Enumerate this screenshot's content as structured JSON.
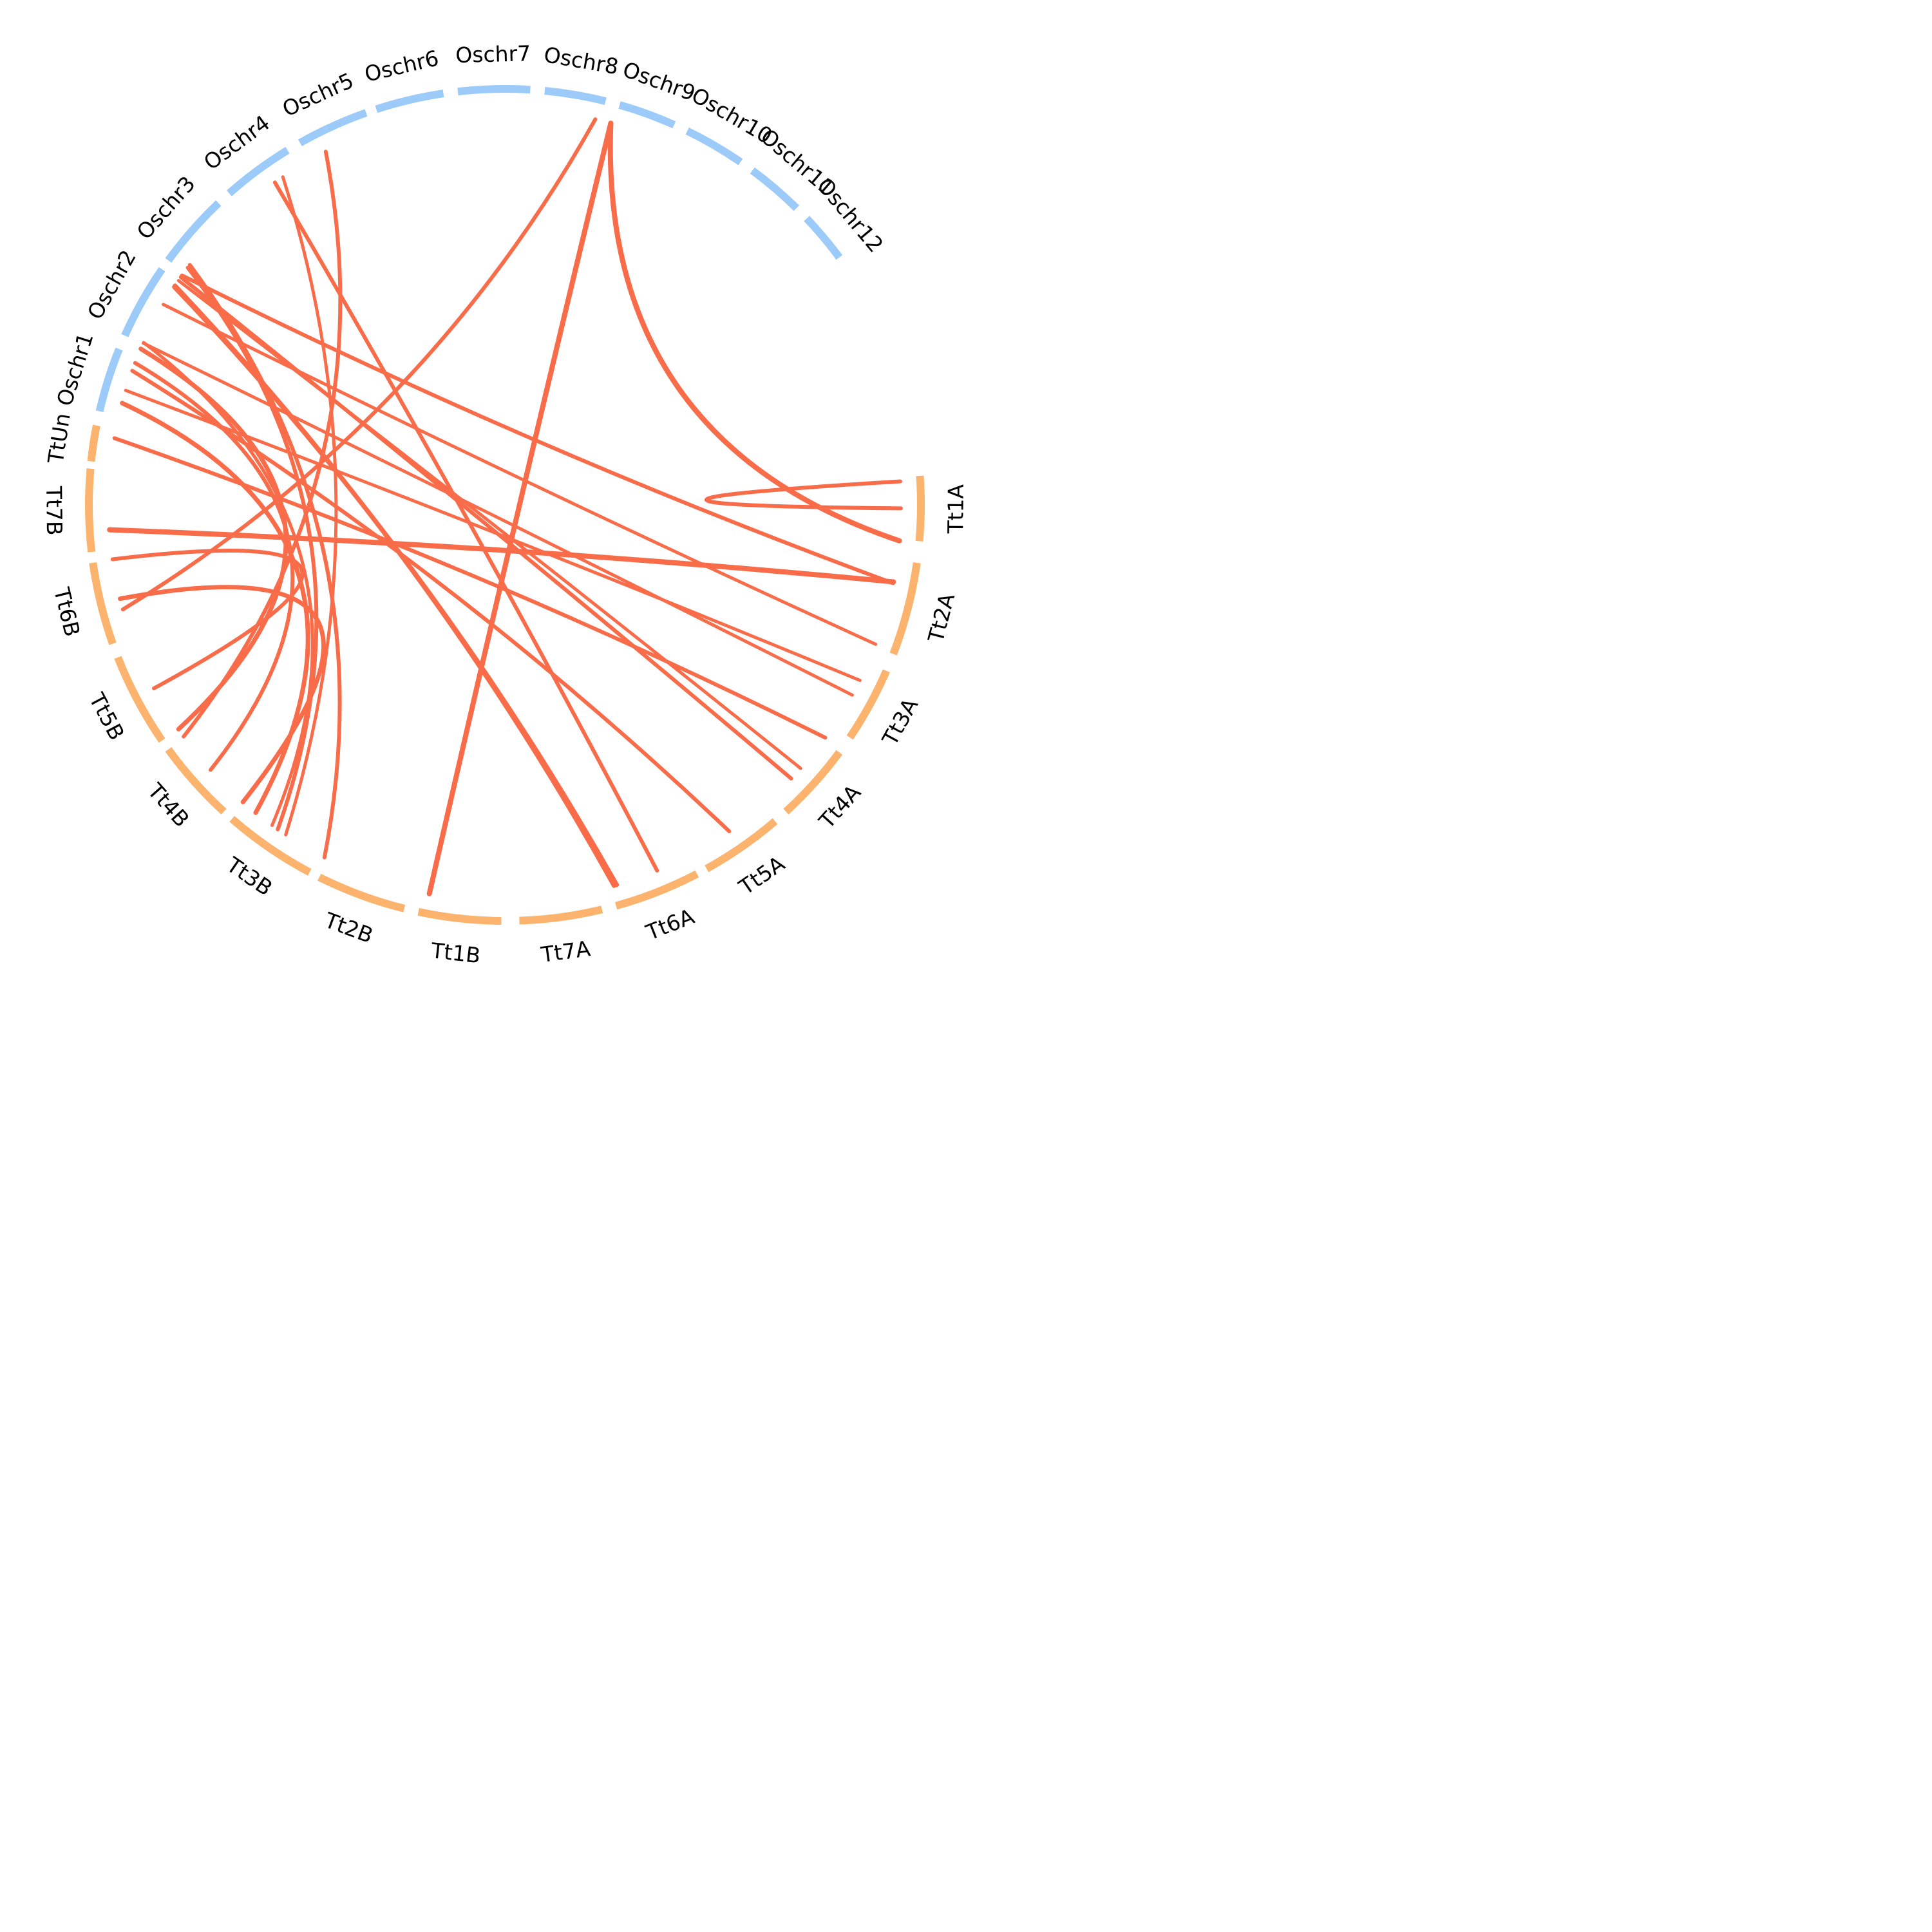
{
  "diagram": {
    "type": "circos",
    "colors": {
      "rice_segment": "#9ccbf9",
      "wheat_segment": "#fbb36e",
      "link": "#f96c4a",
      "label": "#000000"
    },
    "chromosomes": [
      {
        "id": "Tt1A",
        "label": "Tt1A",
        "group": "wheat"
      },
      {
        "id": "Tt2A",
        "label": "Tt2A",
        "group": "wheat"
      },
      {
        "id": "Tt3A",
        "label": "Tt3A",
        "group": "wheat"
      },
      {
        "id": "Tt4A",
        "label": "Tt4A",
        "group": "wheat"
      },
      {
        "id": "Tt5A",
        "label": "Tt5A",
        "group": "wheat"
      },
      {
        "id": "Tt6A",
        "label": "Tt6A",
        "group": "wheat"
      },
      {
        "id": "Tt7A",
        "label": "Tt7A",
        "group": "wheat"
      },
      {
        "id": "Tt1B",
        "label": "Tt1B",
        "group": "wheat"
      },
      {
        "id": "Tt2B",
        "label": "Tt2B",
        "group": "wheat"
      },
      {
        "id": "Tt3B",
        "label": "Tt3B",
        "group": "wheat"
      },
      {
        "id": "Tt4B",
        "label": "Tt4B",
        "group": "wheat"
      },
      {
        "id": "Tt5B",
        "label": "Tt5B",
        "group": "wheat"
      },
      {
        "id": "Tt6B",
        "label": "Tt6B",
        "group": "wheat"
      },
      {
        "id": "Tt7B",
        "label": "Tt7B",
        "group": "wheat"
      },
      {
        "id": "TtUn",
        "label": "TtUn",
        "group": "wheat"
      },
      {
        "id": "Oschr1",
        "label": "Oschr1",
        "group": "rice"
      },
      {
        "id": "Oschr2",
        "label": "Oschr2",
        "group": "rice"
      },
      {
        "id": "Oschr3",
        "label": "Oschr3",
        "group": "rice"
      },
      {
        "id": "Oschr4",
        "label": "Oschr4",
        "group": "rice"
      },
      {
        "id": "Oschr5",
        "label": "Oschr5",
        "group": "rice"
      },
      {
        "id": "Oschr6",
        "label": "Oschr6",
        "group": "rice"
      },
      {
        "id": "Oschr7",
        "label": "Oschr7",
        "group": "rice"
      },
      {
        "id": "Oschr8",
        "label": "Oschr8",
        "group": "rice"
      },
      {
        "id": "Oschr9",
        "label": "Oschr9",
        "group": "rice"
      },
      {
        "id": "Oschr10",
        "label": "Oschr10",
        "group": "rice"
      },
      {
        "id": "Oschr11",
        "label": "Oschr11",
        "group": "rice"
      },
      {
        "id": "Oschr12",
        "label": "Oschr12",
        "group": "rice"
      }
    ],
    "links": [
      {
        "a": "Oschr10",
        "b": "Tt1A"
      },
      {
        "a": "Tt1A",
        "b": "Tt1A"
      },
      {
        "a": "Oschr10",
        "b": "Tt1B"
      },
      {
        "a": "Oschr8",
        "b": "Tt6B"
      },
      {
        "a": "Oschr6",
        "b": "Tt4B"
      },
      {
        "a": "Oschr6",
        "b": "Tt4A"
      },
      {
        "a": "Oschr5",
        "b": "Tt6A"
      },
      {
        "a": "Oschr5",
        "b": "Tt3B"
      },
      {
        "a": "Oschr4",
        "b": "Tt6A"
      },
      {
        "a": "Oschr4",
        "b": "Tt6A"
      },
      {
        "a": "Oschr4",
        "b": "Tt2A"
      },
      {
        "a": "Oschr4",
        "b": "Tt2B"
      },
      {
        "a": "Oschr3",
        "b": "Tt4A"
      },
      {
        "a": "Oschr3",
        "b": "Tt2A"
      },
      {
        "a": "Oschr3",
        "b": "Tt5A"
      },
      {
        "a": "Oschr3",
        "b": "Tt3A"
      },
      {
        "a": "Oschr3",
        "b": "Tt2B"
      },
      {
        "a": "Oschr2",
        "b": "Tt7B"
      },
      {
        "a": "Oschr2",
        "b": "Tt3A"
      },
      {
        "a": "Oschr2",
        "b": "Tt5B"
      },
      {
        "a": "Oschr1",
        "b": "Tt3B"
      },
      {
        "a": "Oschr1",
        "b": "Tt3B"
      },
      {
        "a": "TtUn",
        "b": "Tt4A"
      },
      {
        "a": "Tt7B",
        "b": "Tt4B"
      },
      {
        "a": "Tt7B",
        "b": "Tt5B"
      },
      {
        "a": "Tt7B",
        "b": "Tt2A"
      }
    ]
  }
}
